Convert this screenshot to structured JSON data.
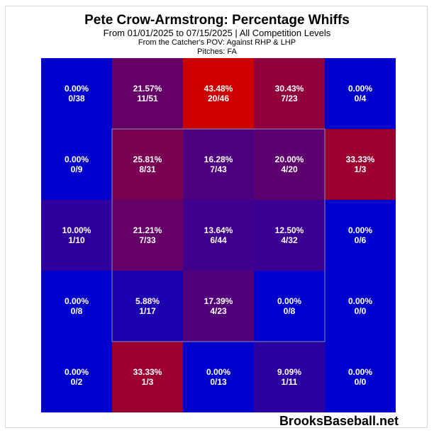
{
  "chart_data": {
    "type": "heatmap",
    "title": "Pete Crow-Armstrong: Percentage Whiffs",
    "subtitle": "From 01/01/2025 to 07/15/2025 | All Competition Levels",
    "pov_note": "From the Catcher's POV:   Against RHP & LHP",
    "pitches_note": "Pitches:  FA",
    "rows": [
      [
        {
          "pct": "0.00%",
          "count": "0/38",
          "value": 0.0
        },
        {
          "pct": "21.57%",
          "count": "11/51",
          "value": 21.57
        },
        {
          "pct": "43.48%",
          "count": "20/46",
          "value": 43.48
        },
        {
          "pct": "30.43%",
          "count": "7/23",
          "value": 30.43
        },
        {
          "pct": "0.00%",
          "count": "0/4",
          "value": 0.0
        }
      ],
      [
        {
          "pct": "0.00%",
          "count": "0/9",
          "value": 0.0
        },
        {
          "pct": "25.81%",
          "count": "8/31",
          "value": 25.81
        },
        {
          "pct": "16.28%",
          "count": "7/43",
          "value": 16.28
        },
        {
          "pct": "20.00%",
          "count": "4/20",
          "value": 20.0
        },
        {
          "pct": "33.33%",
          "count": "1/3",
          "value": 33.33
        }
      ],
      [
        {
          "pct": "10.00%",
          "count": "1/10",
          "value": 10.0
        },
        {
          "pct": "21.21%",
          "count": "7/33",
          "value": 21.21
        },
        {
          "pct": "13.64%",
          "count": "6/44",
          "value": 13.64
        },
        {
          "pct": "12.50%",
          "count": "4/32",
          "value": 12.5
        },
        {
          "pct": "0.00%",
          "count": "0/6",
          "value": 0.0
        }
      ],
      [
        {
          "pct": "0.00%",
          "count": "0/8",
          "value": 0.0
        },
        {
          "pct": "5.88%",
          "count": "1/17",
          "value": 5.88
        },
        {
          "pct": "17.39%",
          "count": "4/23",
          "value": 17.39
        },
        {
          "pct": "0.00%",
          "count": "0/8",
          "value": 0.0
        },
        {
          "pct": "0.00%",
          "count": "0/0",
          "value": 0.0
        }
      ],
      [
        {
          "pct": "0.00%",
          "count": "0/2",
          "value": 0.0
        },
        {
          "pct": "33.33%",
          "count": "1/3",
          "value": 33.33
        },
        {
          "pct": "0.00%",
          "count": "0/13",
          "value": 0.0
        },
        {
          "pct": "9.09%",
          "count": "1/11",
          "value": 9.09
        },
        {
          "pct": "0.00%",
          "count": "0/0",
          "value": 0.0
        }
      ]
    ],
    "color_scale": {
      "low": "#0000cc",
      "high": "#cc0000",
      "max_value": 43.48
    },
    "strike_zone": "inner 3x3 cells outlined"
  },
  "watermark": "BrooksBaseball.net"
}
